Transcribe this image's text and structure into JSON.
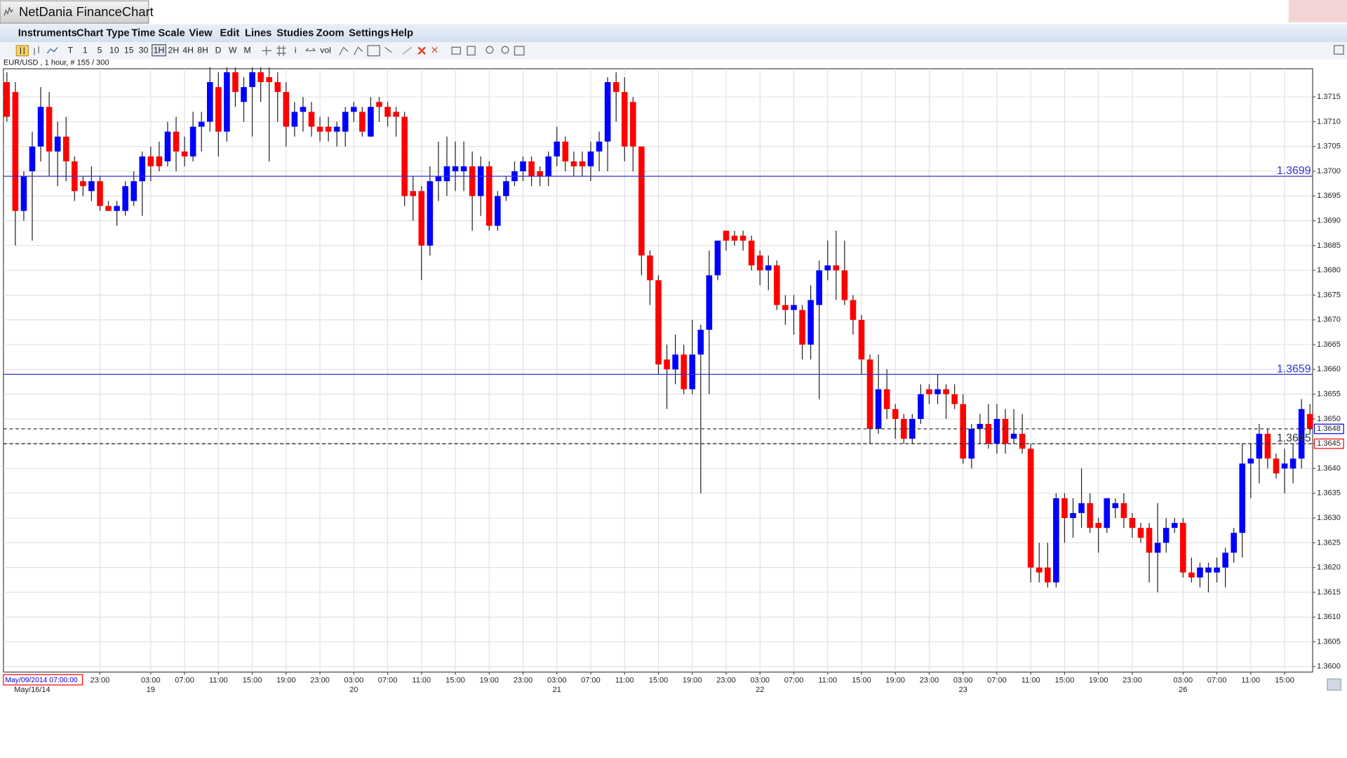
{
  "window": {
    "app_title": "NetDania FinanceChart",
    "menu": [
      "Instruments",
      "Chart Type",
      "Time Scale",
      "View",
      "Edit",
      "Lines",
      "Studies",
      "Zoom",
      "Settings",
      "Help"
    ],
    "toolbar": [
      "T",
      "1",
      "5",
      "10",
      "15",
      "30",
      "1H",
      "2H",
      "4H",
      "8H",
      "D",
      "W",
      "M"
    ],
    "toolbar_selected": 6,
    "toolbar_extra": [
      "i",
      "vol"
    ]
  },
  "chart_data": {
    "type": "candlestick",
    "title": "EUR/USD , 1 hour, # 155 / 300",
    "scroll_label": "May/09/2014 07:00:00",
    "up_color": "#0000ff",
    "down_color": "#ff0000",
    "hline_color": "#3333cc",
    "grid": true,
    "ylim": [
      1.35989,
      1.37207
    ],
    "yticks": [
      {
        "value": 1.36,
        "label": "1.3600"
      },
      1.3605,
      {
        "value": 1.361,
        "label": "1.3610"
      },
      1.3615,
      {
        "value": 1.362,
        "label": "1.3620"
      },
      1.3625,
      {
        "value": 1.363,
        "label": "1.3630"
      },
      1.3635,
      {
        "value": 1.364,
        "label": "1.3640"
      },
      1.3645,
      {
        "value": 1.365,
        "label": "1.3650"
      },
      1.3655,
      {
        "value": 1.366,
        "label": "1.3660"
      },
      1.3665,
      {
        "value": 1.367,
        "label": "1.3670"
      },
      1.3675,
      {
        "value": 1.368,
        "label": "1.3680"
      },
      1.3685,
      {
        "value": 1.369,
        "label": "1.3690"
      },
      1.3695,
      {
        "value": 1.37,
        "label": "1.3700"
      },
      1.3705,
      {
        "value": 1.371,
        "label": "1.3710"
      },
      1.3715
    ],
    "xticks": [
      {
        "value": 11,
        "label": "23:00"
      },
      {
        "value": 17,
        "label": "03:00"
      },
      {
        "value": 21,
        "label": "07:00"
      },
      {
        "value": 25,
        "label": "11:00"
      },
      {
        "value": 29,
        "label": "15:00"
      },
      {
        "value": 33,
        "label": "19:00"
      },
      {
        "value": 37,
        "label": "23:00"
      },
      {
        "value": 41,
        "label": "03:00"
      },
      {
        "value": 45,
        "label": "07:00"
      },
      {
        "value": 49,
        "label": "11:00"
      },
      {
        "value": 53,
        "label": "15:00"
      },
      {
        "value": 57,
        "label": "19:00"
      },
      {
        "value": 61,
        "label": "23:00"
      },
      {
        "value": 65,
        "label": "03:00"
      },
      {
        "value": 69,
        "label": "07:00"
      },
      {
        "value": 73,
        "label": "11:00"
      },
      {
        "value": 77,
        "label": "15:00"
      },
      {
        "value": 81,
        "label": "19:00"
      },
      {
        "value": 85,
        "label": "23:00"
      },
      {
        "value": 89,
        "label": "03:00"
      },
      {
        "value": 93,
        "label": "07:00"
      },
      {
        "value": 97,
        "label": "11:00"
      },
      {
        "value": 101,
        "label": "15:00"
      },
      {
        "value": 105,
        "label": "19:00"
      },
      {
        "value": 109,
        "label": "23:00"
      },
      {
        "value": 113,
        "label": "03:00"
      },
      {
        "value": 117,
        "label": "07:00"
      },
      {
        "value": 121,
        "label": "11:00"
      },
      {
        "value": 125,
        "label": "15:00"
      },
      {
        "value": 129,
        "label": "19:00"
      },
      {
        "value": 133,
        "label": "23:00"
      },
      {
        "value": 139,
        "label": "03:00"
      },
      {
        "value": 143,
        "label": "07:00"
      },
      {
        "value": 147,
        "label": "11:00"
      },
      {
        "value": 151,
        "label": "15:00"
      }
    ],
    "dates": [
      {
        "value": 3,
        "label": "May/16/14"
      },
      {
        "value": 17,
        "label": "19"
      },
      {
        "value": 41,
        "label": "20"
      },
      {
        "value": 65,
        "label": "21"
      },
      {
        "value": 89,
        "label": "22"
      },
      {
        "value": 113,
        "label": "23"
      },
      {
        "value": 139,
        "label": "26"
      }
    ],
    "hlines": [
      {
        "value": 1.3699,
        "style": "solid"
      },
      {
        "value": 1.3659,
        "style": "solid"
      },
      {
        "value": 1.3645,
        "style": "dashed"
      }
    ],
    "markers": [
      {
        "value": 1.3648,
        "color": "#0000ff"
      },
      {
        "value": 1.3645,
        "color": "#ff0000"
      }
    ],
    "candles": [
      [
        1.3718,
        1.372,
        1.371,
        1.3711
      ],
      [
        1.3716,
        1.3718,
        1.3685,
        1.3692
      ],
      [
        1.3692,
        1.37,
        1.369,
        1.3699
      ],
      [
        1.37,
        1.3708,
        1.3686,
        1.3705
      ],
      [
        1.3705,
        1.3717,
        1.3702,
        1.3713
      ],
      [
        1.3713,
        1.3716,
        1.3699,
        1.3704
      ],
      [
        1.3704,
        1.371,
        1.3697,
        1.3707
      ],
      [
        1.3707,
        1.3711,
        1.3698,
        1.3702
      ],
      [
        1.3702,
        1.3703,
        1.3694,
        1.3696
      ],
      [
        1.3698,
        1.3699,
        1.3695,
        1.3697
      ],
      [
        1.3696,
        1.3701,
        1.3694,
        1.3698
      ],
      [
        1.3698,
        1.3699,
        1.3692,
        1.3693
      ],
      [
        1.3693,
        1.3694,
        1.3692,
        1.3692
      ],
      [
        1.3692,
        1.3694,
        1.3689,
        1.3693
      ],
      [
        1.3692,
        1.3698,
        1.3691,
        1.3697
      ],
      [
        1.3694,
        1.37,
        1.3693,
        1.3698
      ],
      [
        1.3698,
        1.3704,
        1.3691,
        1.3703
      ],
      [
        1.3703,
        1.3705,
        1.3698,
        1.3701
      ],
      [
        1.3703,
        1.3706,
        1.37,
        1.3701
      ],
      [
        1.3702,
        1.371,
        1.3701,
        1.3708
      ],
      [
        1.3708,
        1.3711,
        1.37,
        1.3704
      ],
      [
        1.3704,
        1.3707,
        1.3701,
        1.3703
      ],
      [
        1.3703,
        1.3712,
        1.3702,
        1.3709
      ],
      [
        1.3709,
        1.3712,
        1.3704,
        1.371
      ],
      [
        1.371,
        1.3721,
        1.3708,
        1.3718
      ],
      [
        1.3717,
        1.372,
        1.3703,
        1.3708
      ],
      [
        1.3708,
        1.3721,
        1.3706,
        1.372
      ],
      [
        1.372,
        1.3721,
        1.3713,
        1.3716
      ],
      [
        1.3714,
        1.3719,
        1.371,
        1.3717
      ],
      [
        1.3717,
        1.3721,
        1.3707,
        1.372
      ],
      [
        1.372,
        1.3721,
        1.3714,
        1.3718
      ],
      [
        1.3719,
        1.3721,
        1.3702,
        1.3718
      ],
      [
        1.3718,
        1.372,
        1.371,
        1.3716
      ],
      [
        1.3716,
        1.3718,
        1.3705,
        1.3709
      ],
      [
        1.3709,
        1.3714,
        1.3707,
        1.3712
      ],
      [
        1.3712,
        1.3715,
        1.3708,
        1.3713
      ],
      [
        1.3712,
        1.3714,
        1.3707,
        1.3709
      ],
      [
        1.3709,
        1.3711,
        1.3706,
        1.3708
      ],
      [
        1.3709,
        1.3711,
        1.3706,
        1.3708
      ],
      [
        1.3708,
        1.371,
        1.3705,
        1.3709
      ],
      [
        1.3708,
        1.3713,
        1.3705,
        1.3712
      ],
      [
        1.3712,
        1.3714,
        1.371,
        1.3713
      ],
      [
        1.3712,
        1.3713,
        1.3707,
        1.3708
      ],
      [
        1.3707,
        1.3715,
        1.3707,
        1.3713
      ],
      [
        1.3714,
        1.3715,
        1.371,
        1.3713
      ],
      [
        1.3713,
        1.3714,
        1.3709,
        1.3711
      ],
      [
        1.3712,
        1.3713,
        1.3707,
        1.3711
      ],
      [
        1.3711,
        1.3712,
        1.3693,
        1.3695
      ],
      [
        1.3696,
        1.3699,
        1.369,
        1.3695
      ],
      [
        1.3696,
        1.3697,
        1.3678,
        1.3685
      ],
      [
        1.3685,
        1.3701,
        1.3683,
        1.3698
      ],
      [
        1.3698,
        1.3706,
        1.3694,
        1.3699
      ],
      [
        1.3698,
        1.3707,
        1.3695,
        1.3701
      ],
      [
        1.37,
        1.3706,
        1.3696,
        1.3701
      ],
      [
        1.37,
        1.3706,
        1.3696,
        1.3701
      ],
      [
        1.3701,
        1.3704,
        1.3688,
        1.3695
      ],
      [
        1.3695,
        1.3703,
        1.3691,
        1.3701
      ],
      [
        1.3701,
        1.3702,
        1.3688,
        1.3689
      ],
      [
        1.3689,
        1.3696,
        1.3688,
        1.3695
      ],
      [
        1.3695,
        1.3699,
        1.3694,
        1.3698
      ],
      [
        1.3698,
        1.3702,
        1.3697,
        1.37
      ],
      [
        1.37,
        1.3703,
        1.3698,
        1.3702
      ],
      [
        1.3702,
        1.3703,
        1.3697,
        1.3699
      ],
      [
        1.37,
        1.3701,
        1.3697,
        1.3699
      ],
      [
        1.3699,
        1.3704,
        1.3697,
        1.3703
      ],
      [
        1.3703,
        1.3709,
        1.3701,
        1.3706
      ],
      [
        1.3706,
        1.3707,
        1.37,
        1.3702
      ],
      [
        1.3702,
        1.3704,
        1.3699,
        1.3701
      ],
      [
        1.3702,
        1.3704,
        1.3699,
        1.3701
      ],
      [
        1.3701,
        1.3706,
        1.3698,
        1.3704
      ],
      [
        1.3704,
        1.3708,
        1.37,
        1.3706
      ],
      [
        1.3706,
        1.3719,
        1.37,
        1.3718
      ],
      [
        1.3718,
        1.372,
        1.371,
        1.3716
      ],
      [
        1.3716,
        1.3719,
        1.3702,
        1.3705
      ],
      [
        1.3714,
        1.3715,
        1.37,
        1.3705
      ],
      [
        1.3705,
        1.3705,
        1.3679,
        1.3683
      ],
      [
        1.3683,
        1.3684,
        1.3673,
        1.3678
      ],
      [
        1.3678,
        1.3679,
        1.3659,
        1.3661
      ],
      [
        1.3662,
        1.3665,
        1.3652,
        1.366
      ],
      [
        1.366,
        1.3667,
        1.3657,
        1.3663
      ],
      [
        1.3663,
        1.3665,
        1.3655,
        1.3656
      ],
      [
        1.3656,
        1.367,
        1.3655,
        1.3663
      ],
      [
        1.3663,
        1.3669,
        1.3635,
        1.3668
      ],
      [
        1.3668,
        1.3684,
        1.3655,
        1.3679
      ],
      [
        1.3679,
        1.3686,
        1.3678,
        1.3686
      ],
      [
        1.3688,
        1.3688,
        1.3684,
        1.3686
      ],
      [
        1.3687,
        1.3688,
        1.3685,
        1.3686
      ],
      [
        1.3687,
        1.3688,
        1.3684,
        1.3686
      ],
      [
        1.3686,
        1.3687,
        1.368,
        1.3681
      ],
      [
        1.3683,
        1.3684,
        1.3677,
        1.368
      ],
      [
        1.368,
        1.3683,
        1.3676,
        1.3681
      ],
      [
        1.3681,
        1.3682,
        1.3672,
        1.3673
      ],
      [
        1.3673,
        1.3675,
        1.3669,
        1.3672
      ],
      [
        1.3672,
        1.3675,
        1.3667,
        1.3673
      ],
      [
        1.3672,
        1.3673,
        1.3662,
        1.3665
      ],
      [
        1.3665,
        1.3677,
        1.3662,
        1.3674
      ],
      [
        1.3673,
        1.3682,
        1.3654,
        1.368
      ],
      [
        1.368,
        1.3686,
        1.3678,
        1.3681
      ],
      [
        1.3681,
        1.3688,
        1.3674,
        1.368
      ],
      [
        1.368,
        1.3686,
        1.3673,
        1.3674
      ],
      [
        1.3674,
        1.3675,
        1.3667,
        1.367
      ],
      [
        1.367,
        1.3671,
        1.3659,
        1.3662
      ],
      [
        1.3662,
        1.3663,
        1.3645,
        1.3648
      ],
      [
        1.3648,
        1.3663,
        1.3647,
        1.3656
      ],
      [
        1.3656,
        1.366,
        1.365,
        1.3652
      ],
      [
        1.3652,
        1.3653,
        1.3646,
        1.365
      ],
      [
        1.365,
        1.3651,
        1.3645,
        1.3646
      ],
      [
        1.3646,
        1.3651,
        1.3645,
        1.365
      ],
      [
        1.365,
        1.3657,
        1.3649,
        1.3655
      ],
      [
        1.3656,
        1.3657,
        1.3653,
        1.3655
      ],
      [
        1.3655,
        1.3659,
        1.3653,
        1.3656
      ],
      [
        1.3656,
        1.3657,
        1.365,
        1.3655
      ],
      [
        1.3655,
        1.3657,
        1.3652,
        1.3653
      ],
      [
        1.3653,
        1.3655,
        1.3641,
        1.3642
      ],
      [
        1.3642,
        1.3649,
        1.364,
        1.3648
      ],
      [
        1.3648,
        1.3651,
        1.3645,
        1.3649
      ],
      [
        1.3649,
        1.3653,
        1.3644,
        1.3645
      ],
      [
        1.3645,
        1.3653,
        1.3643,
        1.365
      ],
      [
        1.365,
        1.3652,
        1.3643,
        1.3645
      ],
      [
        1.3646,
        1.3652,
        1.3645,
        1.3647
      ],
      [
        1.3647,
        1.3651,
        1.3643,
        1.3644
      ],
      [
        1.3644,
        1.3645,
        1.3617,
        1.362
      ],
      [
        1.362,
        1.3625,
        1.3617,
        1.3619
      ],
      [
        1.362,
        1.3625,
        1.3616,
        1.3617
      ],
      [
        1.3617,
        1.3635,
        1.3616,
        1.3634
      ],
      [
        1.3634,
        1.3635,
        1.3625,
        1.363
      ],
      [
        1.363,
        1.3634,
        1.3626,
        1.3631
      ],
      [
        1.3631,
        1.364,
        1.3628,
        1.3633
      ],
      [
        1.3633,
        1.3635,
        1.3627,
        1.3628
      ],
      [
        1.3629,
        1.363,
        1.3623,
        1.3628
      ],
      [
        1.3628,
        1.3634,
        1.3627,
        1.3634
      ],
      [
        1.3632,
        1.3634,
        1.363,
        1.3633
      ],
      [
        1.3633,
        1.3635,
        1.3628,
        1.363
      ],
      [
        1.363,
        1.3631,
        1.3626,
        1.3628
      ],
      [
        1.3628,
        1.3629,
        1.3625,
        1.3626
      ],
      [
        1.3628,
        1.3629,
        1.3617,
        1.3623
      ],
      [
        1.3623,
        1.3633,
        1.3615,
        1.3625
      ],
      [
        1.3625,
        1.363,
        1.3623,
        1.3628
      ],
      [
        1.3628,
        1.363,
        1.3627,
        1.3629
      ],
      [
        1.3629,
        1.363,
        1.3618,
        1.3619
      ],
      [
        1.3619,
        1.3622,
        1.3617,
        1.3618
      ],
      [
        1.3618,
        1.3621,
        1.3616,
        1.362
      ],
      [
        1.3619,
        1.3621,
        1.3615,
        1.362
      ],
      [
        1.3619,
        1.3622,
        1.3617,
        1.362
      ],
      [
        1.362,
        1.3624,
        1.3616,
        1.3623
      ],
      [
        1.3623,
        1.3628,
        1.3621,
        1.3627
      ],
      [
        1.3627,
        1.3645,
        1.3622,
        1.3641
      ],
      [
        1.3641,
        1.3645,
        1.3634,
        1.3642
      ],
      [
        1.3642,
        1.3649,
        1.3637,
        1.3647
      ],
      [
        1.3647,
        1.3648,
        1.364,
        1.3642
      ],
      [
        1.3642,
        1.3643,
        1.3638,
        1.3639
      ],
      [
        1.364,
        1.3644,
        1.3635,
        1.3641
      ],
      [
        1.364,
        1.3645,
        1.3637,
        1.3642
      ],
      [
        1.3642,
        1.3654,
        1.364,
        1.3652
      ],
      [
        1.3651,
        1.3653,
        1.3647,
        1.3648
      ]
    ]
  }
}
